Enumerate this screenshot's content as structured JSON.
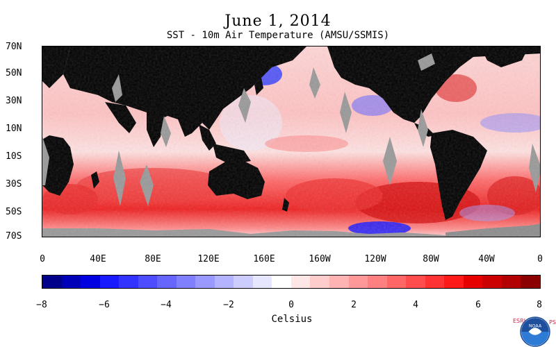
{
  "title": "June 1, 2014",
  "subtitle": "SST - 10m Air Temperature (AMSU/SSMIS)",
  "map": {
    "lat_labels": [
      "70N",
      "50N",
      "30N",
      "10N",
      "10S",
      "30S",
      "50S",
      "70S"
    ],
    "lon_labels": [
      "0",
      "40E",
      "80E",
      "120E",
      "160E",
      "160W",
      "120W",
      "80W",
      "40W",
      "0"
    ],
    "colors": {
      "land": "#000000",
      "missing": "#999999",
      "sea_ice": "#8c8c8c"
    }
  },
  "colorbar": {
    "title": "Celsius",
    "min": -8,
    "max": 8,
    "tick_labels": [
      "−8",
      "−6",
      "−4",
      "−2",
      "0",
      "2",
      "4",
      "6",
      "8"
    ],
    "colors": [
      "#00008b",
      "#0000b8",
      "#0000e0",
      "#1a1aff",
      "#3333ff",
      "#4d4dff",
      "#6666ff",
      "#8080ff",
      "#9999ff",
      "#b3b3ff",
      "#ccccff",
      "#e6e6ff",
      "#ffffff",
      "#ffe6e6",
      "#ffcccc",
      "#ffb3b3",
      "#ff9999",
      "#ff8080",
      "#ff6666",
      "#ff4d4d",
      "#ff3333",
      "#ff1a1a",
      "#e60000",
      "#cc0000",
      "#b30000",
      "#8b0000"
    ]
  },
  "logos": {
    "left_text": "ESRL",
    "right_text": "PSD",
    "noaa": "NOAA"
  }
}
